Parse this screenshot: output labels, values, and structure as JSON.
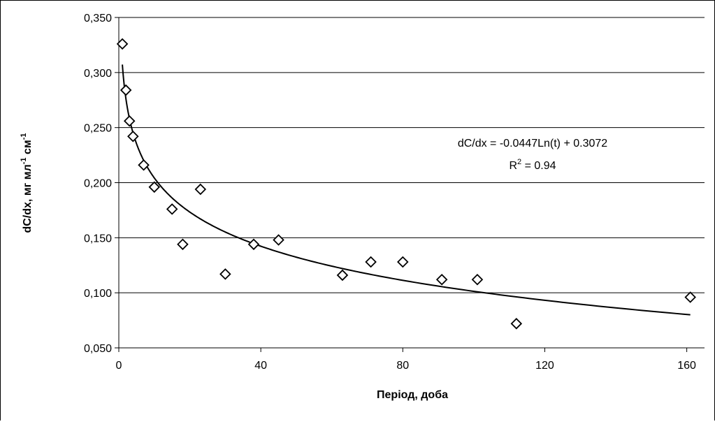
{
  "chart_data": {
    "type": "scatter",
    "title": "",
    "xlabel": "Період, доба",
    "ylabel": {
      "main": "dC/dx, мг мл",
      "sup1": "-1",
      "mid": " см",
      "sup2": "-1"
    },
    "xlim": [
      0,
      165
    ],
    "ylim": [
      0.05,
      0.35
    ],
    "xticks": [
      0,
      40,
      80,
      120,
      160
    ],
    "yticks": [
      0.05,
      0.1,
      0.15,
      0.2,
      0.25,
      0.3,
      0.35
    ],
    "xtick_labels": [
      "0",
      "40",
      "80",
      "120",
      "160"
    ],
    "ytick_labels": [
      "0,050",
      "0,100",
      "0,150",
      "0,200",
      "0,250",
      "0,300",
      "0,350"
    ],
    "grid": "horizontal",
    "legend": "none",
    "series": [
      {
        "marker": "diamond-open",
        "x": [
          1,
          2,
          3,
          4,
          7,
          10,
          15,
          18,
          23,
          30,
          38,
          45,
          63,
          71,
          80,
          91,
          101,
          112,
          161
        ],
        "y": [
          0.326,
          0.284,
          0.256,
          0.242,
          0.216,
          0.196,
          0.176,
          0.144,
          0.194,
          0.117,
          0.144,
          0.148,
          0.116,
          0.128,
          0.128,
          0.112,
          0.112,
          0.072,
          0.096
        ]
      }
    ],
    "trendline": {
      "type": "logarithmic",
      "a": -0.0447,
      "b": 0.3072,
      "x_range": [
        1,
        161
      ]
    },
    "annotation": {
      "equation": "dC/dx = -0.0447Ln(t) + 0.3072",
      "r2_prefix": "R",
      "r2_sup": "2",
      "r2_suffix": " = 0.94"
    },
    "colors": {
      "marker": "#000000",
      "line": "#000000",
      "grid": "#000000"
    }
  }
}
